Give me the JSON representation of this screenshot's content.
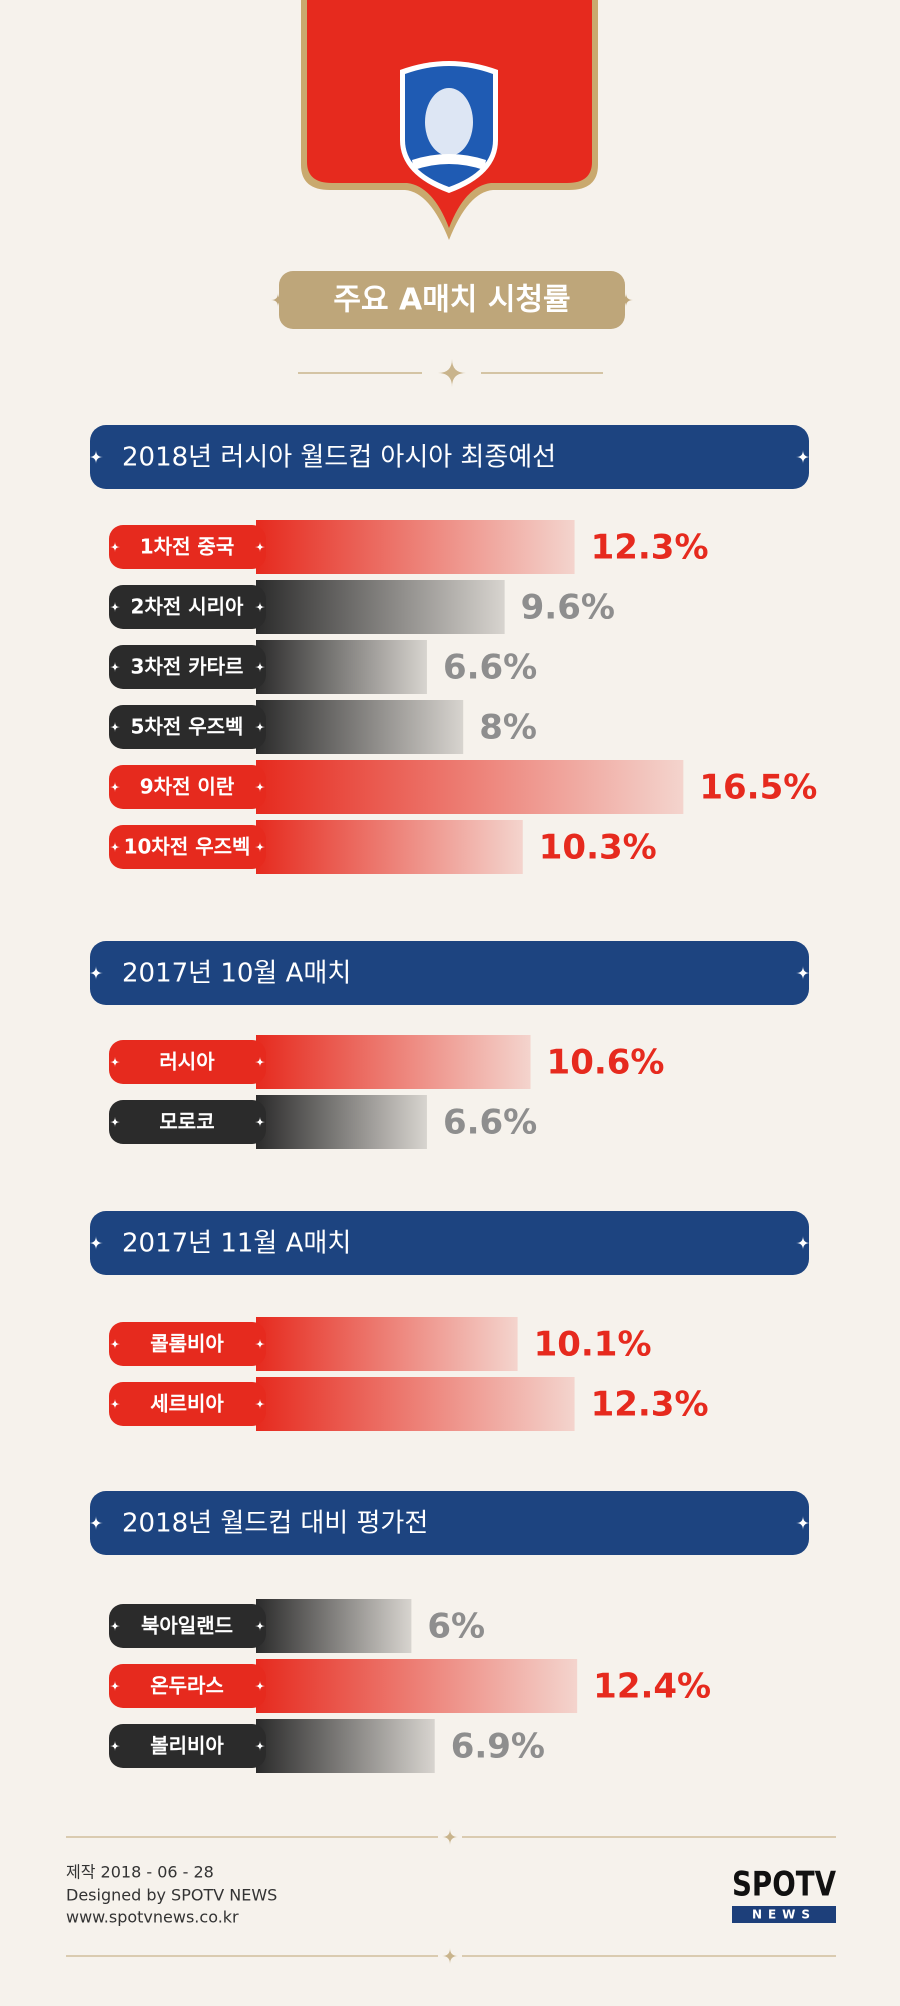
{
  "title": "주요 A매치 시청률",
  "chart_data": [
    {
      "type": "bar",
      "orientation": "horizontal",
      "title": "2018년 러시아 월드컵 아시아 최종예선",
      "categories": [
        "1차전 중국",
        "2차전 시리아",
        "3차전 카타르",
        "5차전 우즈벡",
        "9차전 이란",
        "10차전 우즈벡"
      ],
      "values": [
        12.3,
        9.6,
        6.6,
        8,
        16.5,
        10.3
      ],
      "value_labels": [
        "12.3%",
        "9.6%",
        "6.6%",
        "8%",
        "16.5%",
        "10.3%"
      ],
      "colors": [
        "#e62a1e",
        "#2b2b2b",
        "#2b2b2b",
        "#2b2b2b",
        "#e62a1e",
        "#e62a1e"
      ],
      "label_colors": [
        "#e62a1e",
        "#8e8e8e",
        "#8e8e8e",
        "#8e8e8e",
        "#e62a1e",
        "#e62a1e"
      ]
    },
    {
      "type": "bar",
      "orientation": "horizontal",
      "title": "2017년 10월 A매치",
      "categories": [
        "러시아",
        "모로코"
      ],
      "values": [
        10.6,
        6.6
      ],
      "value_labels": [
        "10.6%",
        "6.6%"
      ],
      "colors": [
        "#e62a1e",
        "#2b2b2b"
      ],
      "label_colors": [
        "#e62a1e",
        "#8e8e8e"
      ]
    },
    {
      "type": "bar",
      "orientation": "horizontal",
      "title": "2017년 11월 A매치",
      "categories": [
        "콜롬비아",
        "세르비아"
      ],
      "values": [
        10.1,
        12.3
      ],
      "value_labels": [
        "10.1%",
        "12.3%"
      ],
      "colors": [
        "#e62a1e",
        "#e62a1e"
      ],
      "label_colors": [
        "#e62a1e",
        "#e62a1e"
      ]
    },
    {
      "type": "bar",
      "orientation": "horizontal",
      "title": "2018년 월드컵 대비 평가전",
      "categories": [
        "북아일랜드",
        "온두라스",
        "볼리비아"
      ],
      "values": [
        6,
        12.4,
        6.9
      ],
      "value_labels": [
        "6%",
        "12.4%",
        "6.9%"
      ],
      "colors": [
        "#2b2b2b",
        "#e62a1e",
        "#2b2b2b"
      ],
      "label_colors": [
        "#8e8e8e",
        "#e62a1e",
        "#8e8e8e"
      ]
    }
  ],
  "footer": {
    "lines": [
      "제작 2018 - 06 - 28",
      "Designed by SPOTV NEWS",
      "www.spotvnews.co.kr"
    ],
    "logo": {
      "main": "SPOTV",
      "sub": "NEWS"
    }
  }
}
